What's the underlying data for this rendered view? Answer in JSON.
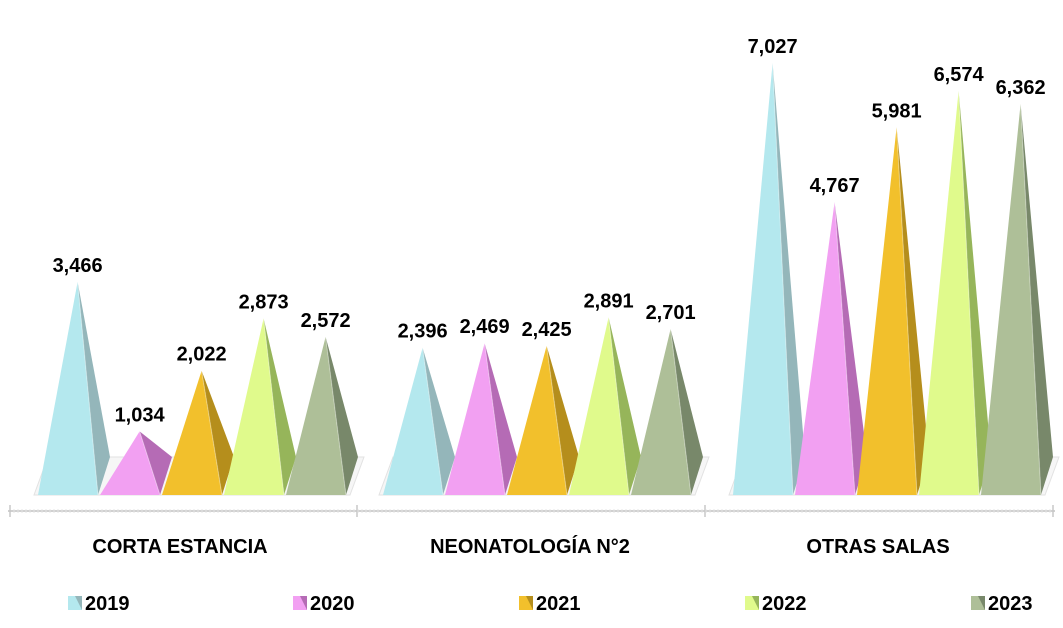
{
  "chart_data": {
    "type": "bar",
    "style": "3d-pyramid",
    "categories": [
      "CORTA ESTANCIA",
      "NEONATOLOGÍA N°2",
      "OTRAS SALAS"
    ],
    "series": [
      {
        "name": "2019",
        "values": [
          3466,
          2396,
          7027
        ],
        "color": "#B4E8EE",
        "shade": "#94B6BA"
      },
      {
        "name": "2020",
        "values": [
          1034,
          2469,
          4767
        ],
        "color": "#F2A0F2",
        "shade": "#B56BB5"
      },
      {
        "name": "2021",
        "values": [
          2022,
          2425,
          5981
        ],
        "color": "#F2C02C",
        "shade": "#B58E1C"
      },
      {
        "name": "2022",
        "values": [
          2873,
          2891,
          6574
        ],
        "color": "#E0FA8C",
        "shade": "#96B55A"
      },
      {
        "name": "2023",
        "values": [
          2572,
          2701,
          6362
        ],
        "color": "#AEBF98",
        "shade": "#78886A"
      }
    ],
    "value_labels": [
      [
        "3,466",
        "2,396",
        "7,027"
      ],
      [
        "1,034",
        "2,469",
        "4,767"
      ],
      [
        "2,022",
        "2,425",
        "5,981"
      ],
      [
        "2,873",
        "2,891",
        "6,574"
      ],
      [
        "2,572",
        "2,701",
        "6,362"
      ]
    ],
    "ylim": [
      0,
      7000
    ],
    "grid": false,
    "legend_position": "bottom"
  }
}
